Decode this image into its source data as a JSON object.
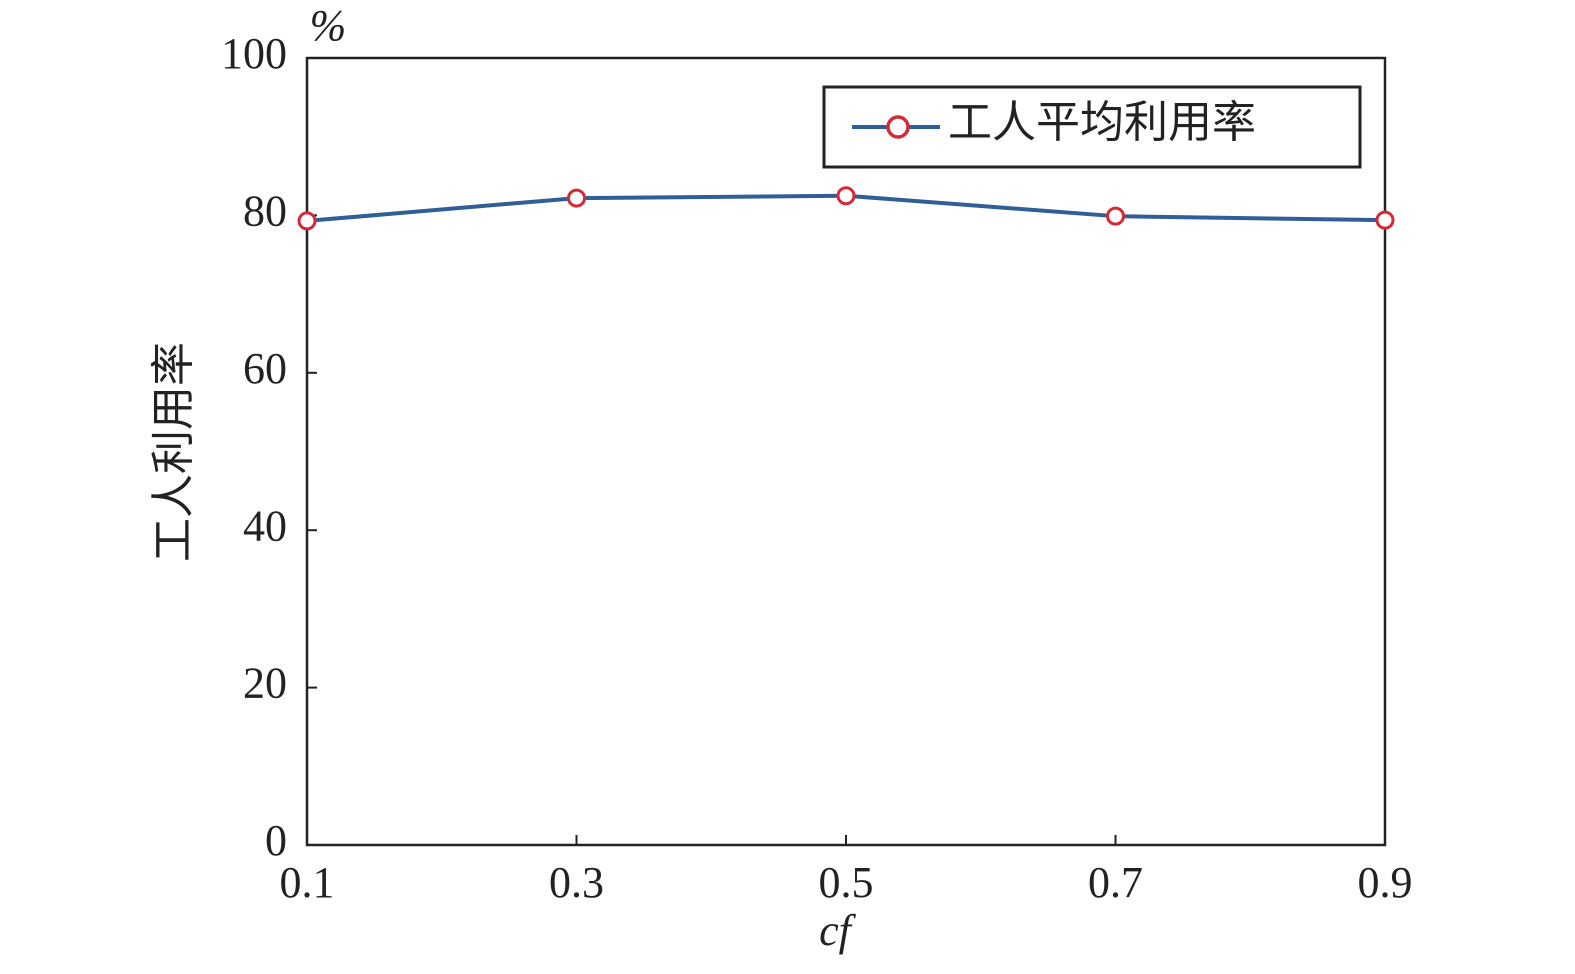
{
  "chart_data": {
    "type": "line",
    "y_unit_label": "%",
    "ylabel": "工人利用率",
    "xlabel": "cf",
    "x": [
      0.1,
      0.3,
      0.5,
      0.7,
      0.9
    ],
    "series": [
      {
        "name": "工人平均利用率",
        "color": "#2f5f97",
        "marker_color": "#d42a36",
        "values": [
          79.3,
          82.2,
          82.5,
          79.9,
          79.4
        ]
      }
    ],
    "xlim": [
      0.1,
      0.9
    ],
    "xticks": [
      0.1,
      0.3,
      0.5,
      0.7,
      0.9
    ],
    "ylim": [
      0,
      100
    ],
    "yticks": [
      0,
      20,
      40,
      60,
      80,
      100
    ],
    "grid": false,
    "legend": "upper right"
  }
}
